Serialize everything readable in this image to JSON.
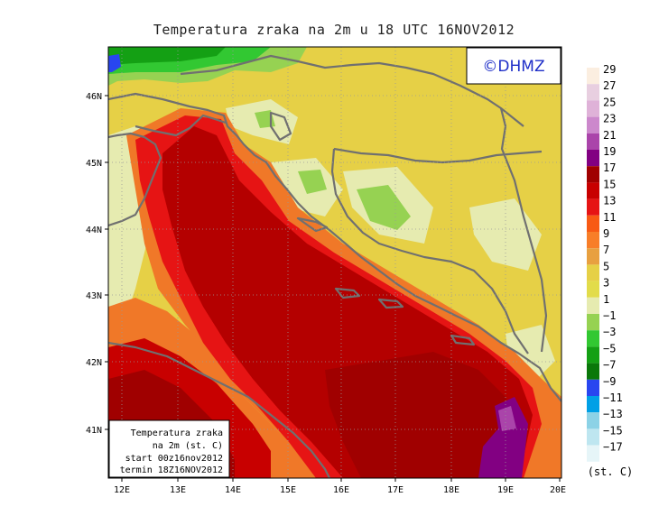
{
  "title": "Temperatura zraka na 2m u 18 UTC 16NOV2012",
  "logo": "©DHMZ",
  "info_box": [
    "Temperatura zraka",
    "na 2m (st. C)",
    "start 00z16nov2012",
    "termin 18Z16NOV2012"
  ],
  "lon_ticks": [
    "12E",
    "13E",
    "14E",
    "15E",
    "16E",
    "17E",
    "18E",
    "19E",
    "20E"
  ],
  "lat_ticks": [
    "46N",
    "45N",
    "44N",
    "43N",
    "42N",
    "41N"
  ],
  "legend": {
    "unit": "(st. C)",
    "labels": [
      "29",
      "27",
      "25",
      "23",
      "21",
      "19",
      "17",
      "15",
      "13",
      "11",
      "9",
      "7",
      "5",
      "3",
      "1",
      "−1",
      "−3",
      "−5",
      "−7",
      "−9",
      "−11",
      "−13",
      "−15",
      "−17"
    ],
    "colors": [
      "#fbeee0",
      "#e8cfe0",
      "#dfb2d8",
      "#cc88cc",
      "#aa44aa",
      "#820082",
      "#a00000",
      "#c80000",
      "#e61414",
      "#f85a14",
      "#f87e28",
      "#e8a040",
      "#e6d046",
      "#e2dc4a",
      "#e6ebb0",
      "#96d252",
      "#32c832",
      "#14a014",
      "#0a780a",
      "#2846f0",
      "#00a0e6",
      "#8cd2e6",
      "#bee6f0",
      "#e6f5f8"
    ]
  },
  "colors": {
    "sea_warm": "#b40000",
    "sea_hot": "#a00000",
    "coast_red": "#e61414",
    "land_yellow": "#e6d046",
    "land_orange": "#f07828",
    "mountain_green": "#96d252",
    "cold_green": "#14a014",
    "purple": "#820082",
    "border": "#707070"
  }
}
